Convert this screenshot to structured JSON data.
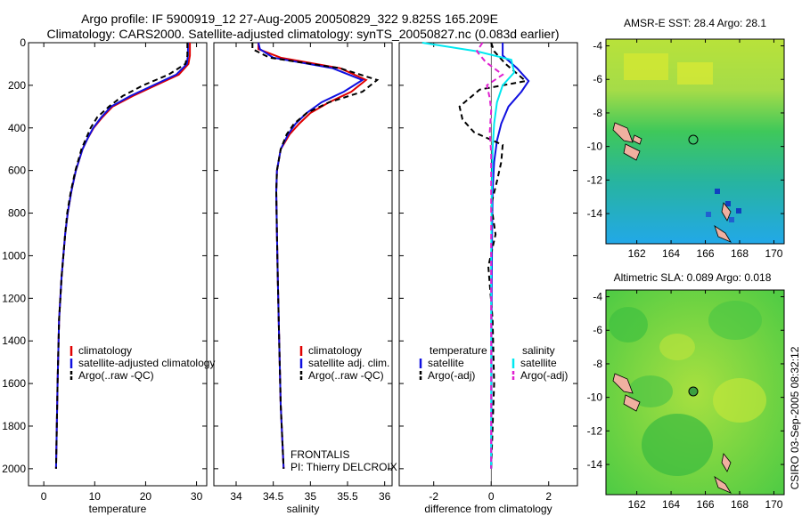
{
  "header": {
    "line1": "Argo profile: IF 5900919_12 27-Aug-2005 20050829_322 9.825S 165.209E",
    "line2": "Climatology: CARS2000. Satellite-adjusted climatology: synTS_20050827.nc (0.083d earlier)"
  },
  "side_label": "CSIRO 03-Sep-2005 08:32:12",
  "colors": {
    "climatology": "#e00000",
    "satellite": "#1010e0",
    "argo": "#000000",
    "sal_satellite": "#00e8f0",
    "sal_argo": "#e020d0",
    "map_bg": "#5fd04a",
    "land": "#f0b0a0"
  },
  "chart_data": [
    {
      "type": "line",
      "panel": "temperature",
      "xlabel": "temperature",
      "ylabel": "",
      "xlim": [
        -3,
        32
      ],
      "ylim": [
        0,
        2080
      ],
      "y_reversed": true,
      "xticks": [
        0,
        10,
        20,
        30
      ],
      "yticks": [
        0,
        200,
        400,
        600,
        800,
        1000,
        1200,
        1400,
        1600,
        1800,
        2000
      ],
      "legend": {
        "placement": "bottom-left",
        "entries": [
          "climatology",
          "satellite-adjusted climatology",
          "Argo(..raw -QC)"
        ]
      },
      "series": [
        {
          "name": "climatology",
          "color": "#e00000",
          "dash": "",
          "x": [
            28.7,
            28.7,
            28.4,
            26.5,
            22.0,
            17.5,
            13.5,
            11.5,
            9.8,
            8.6,
            7.6,
            6.3,
            5.4,
            4.7,
            4.2,
            3.5,
            3.0,
            2.7,
            2.4
          ],
          "y": [
            0,
            60,
            100,
            150,
            200,
            250,
            300,
            350,
            400,
            450,
            500,
            600,
            700,
            800,
            900,
            1100,
            1300,
            1600,
            2000
          ]
        },
        {
          "name": "satellite-adjusted climatology",
          "color": "#1010e0",
          "dash": "",
          "x": [
            28.3,
            28.3,
            28.1,
            26.0,
            21.5,
            17.0,
            13.2,
            11.3,
            9.7,
            8.6,
            7.6,
            6.3,
            5.4,
            4.7,
            4.2,
            3.5,
            3.0,
            2.7,
            2.4
          ],
          "y": [
            0,
            60,
            100,
            150,
            200,
            250,
            300,
            350,
            400,
            450,
            500,
            600,
            700,
            800,
            900,
            1100,
            1300,
            1600,
            2000
          ]
        },
        {
          "name": "Argo(..raw -QC)",
          "color": "#000000",
          "dash": "6,4",
          "x": [
            28.2,
            28.2,
            27.8,
            24.5,
            19.5,
            15.5,
            12.8,
            10.5,
            9.2,
            8.3,
            7.4,
            6.2,
            5.3,
            4.6,
            4.2,
            3.5,
            3.0,
            2.7,
            2.4
          ],
          "y": [
            0,
            60,
            100,
            150,
            200,
            250,
            300,
            350,
            400,
            450,
            500,
            600,
            700,
            800,
            900,
            1100,
            1300,
            1600,
            2000
          ]
        }
      ]
    },
    {
      "type": "line",
      "panel": "salinity",
      "xlabel": "salinity",
      "ylabel": "",
      "xlim": [
        33.7,
        36.1
      ],
      "ylim": [
        0,
        2080
      ],
      "y_reversed": true,
      "xticks": [
        34,
        34.5,
        35,
        35.5,
        36
      ],
      "yticks": [],
      "legend": {
        "placement": "bottom-right",
        "entries": [
          "climatology",
          "satellite adj. clim.",
          "Argo(..raw -QC)"
        ]
      },
      "annotations": [
        "FRONTALIS",
        "PI: Thierry DELCROIX"
      ],
      "series": [
        {
          "name": "climatology",
          "color": "#e00000",
          "dash": "",
          "x": [
            34.3,
            34.3,
            34.6,
            35.4,
            35.75,
            35.55,
            35.25,
            35.0,
            34.85,
            34.72,
            34.6,
            34.55,
            34.54,
            34.55,
            34.56,
            34.58,
            34.6,
            34.64
          ],
          "y": [
            0,
            30,
            70,
            120,
            175,
            230,
            280,
            330,
            380,
            430,
            500,
            600,
            700,
            900,
            1100,
            1400,
            1700,
            2000
          ]
        },
        {
          "name": "satellite adj. clim.",
          "color": "#1010e0",
          "dash": "",
          "x": [
            34.3,
            34.32,
            34.5,
            35.3,
            35.7,
            35.45,
            35.15,
            34.95,
            34.8,
            34.7,
            34.6,
            34.55,
            34.54,
            34.55,
            34.56,
            34.58,
            34.6,
            34.64
          ],
          "y": [
            0,
            30,
            70,
            120,
            175,
            230,
            280,
            330,
            380,
            430,
            500,
            600,
            700,
            900,
            1100,
            1400,
            1700,
            2000
          ]
        },
        {
          "name": "Argo(..raw -QC)",
          "color": "#000000",
          "dash": "6,4",
          "x": [
            34.22,
            34.22,
            34.45,
            35.4,
            35.9,
            35.7,
            35.25,
            34.95,
            34.78,
            34.68,
            34.6,
            34.55,
            34.54,
            34.55,
            34.56,
            34.58,
            34.6,
            34.64
          ],
          "y": [
            0,
            30,
            70,
            120,
            175,
            230,
            280,
            330,
            380,
            430,
            500,
            600,
            700,
            900,
            1100,
            1400,
            1700,
            2000
          ]
        }
      ]
    },
    {
      "type": "line",
      "panel": "difference",
      "xlabel": "difference from climatology",
      "ylabel": "",
      "xlim": [
        -3.2,
        3.0
      ],
      "ylim": [
        0,
        2080
      ],
      "y_reversed": true,
      "xticks": [
        -2,
        0,
        2
      ],
      "yticks": [],
      "legend": {
        "placement": "bottom",
        "groups": [
          {
            "title": "temperature",
            "entries": [
              "satellite",
              "Argo(-adj)"
            ]
          },
          {
            "title": "salinity",
            "entries": [
              "satellite",
              "Argo(-adj)"
            ]
          }
        ]
      },
      "series": [
        {
          "name": "temperature satellite",
          "color": "#1010e0",
          "dash": "",
          "x": [
            0.4,
            0.4,
            0.9,
            1.3,
            1.05,
            0.6,
            0.35,
            0.2,
            0.1,
            0.05,
            0.03,
            0.02,
            0.01,
            0.01,
            0.0
          ],
          "y": [
            0,
            60,
            120,
            180,
            230,
            300,
            380,
            460,
            560,
            700,
            900,
            1100,
            1400,
            1700,
            2000
          ]
        },
        {
          "name": "temperature Argo(-adj)",
          "color": "#000000",
          "dash": "6,4",
          "x": [
            0.0,
            0.1,
            0.5,
            1.2,
            -0.4,
            -1.1,
            -1.0,
            -0.6,
            0.4,
            0.35,
            0.2,
            0.0,
            0.15,
            -0.1,
            0.05,
            0.1,
            0.0
          ],
          "y": [
            0,
            40,
            100,
            180,
            220,
            300,
            360,
            420,
            480,
            560,
            650,
            760,
            900,
            1050,
            1300,
            1600,
            2000
          ]
        },
        {
          "name": "salinity satellite",
          "color": "#00e8f0",
          "dash": "",
          "x": [
            -2.4,
            -0.5,
            0.7,
            0.8,
            0.4,
            0.2,
            0.1,
            0.05,
            0.02,
            0.0,
            0.0
          ],
          "y": [
            0,
            40,
            80,
            140,
            200,
            280,
            380,
            500,
            700,
            1000,
            2000
          ]
        },
        {
          "name": "salinity Argo(-adj)",
          "color": "#e020d0",
          "dash": "6,4",
          "x": [
            -0.3,
            -0.5,
            -0.2,
            0.4,
            -0.15,
            -0.05,
            0.0,
            -0.05,
            0.0,
            0.0,
            0.0
          ],
          "y": [
            0,
            40,
            90,
            150,
            200,
            260,
            320,
            420,
            520,
            700,
            2000
          ]
        }
      ]
    }
  ],
  "maps": [
    {
      "title": "AMSR-E SST: 28.4 Argo: 28.1",
      "xticks": [
        "162",
        "164",
        "166",
        "168",
        "170"
      ],
      "yticks": [
        "-4",
        "-6",
        "-8",
        "-10",
        "-12",
        "-14"
      ],
      "xlim": [
        160.2,
        170.6
      ],
      "ylim": [
        -15.8,
        -3.6
      ],
      "marker": {
        "lon": 165.2,
        "lat": -9.8
      }
    },
    {
      "title": "Altimetric SLA: 0.089 Argo: 0.018",
      "xticks": [
        "162",
        "164",
        "166",
        "168",
        "170"
      ],
      "yticks": [
        "-4",
        "-6",
        "-8",
        "-10",
        "-12",
        "-14"
      ],
      "xlim": [
        160.2,
        170.6
      ],
      "ylim": [
        -15.8,
        -3.6
      ],
      "marker": {
        "lon": 165.2,
        "lat": -9.8
      }
    }
  ]
}
